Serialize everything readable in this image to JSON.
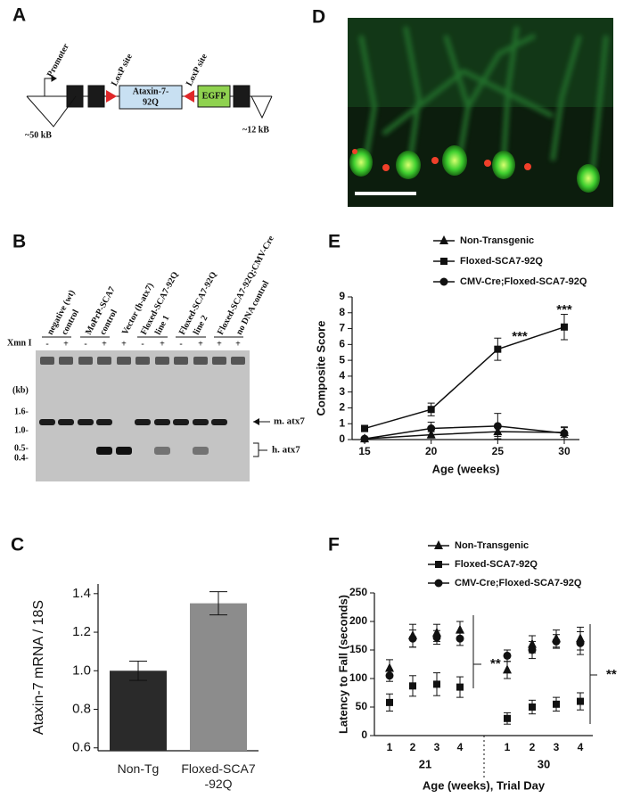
{
  "panel_labels": [
    "A",
    "B",
    "C",
    "D",
    "E",
    "F"
  ],
  "diagram": {
    "promoter": "Promoter",
    "loxp_left": "LoxP site",
    "gene": [
      "Ataxin-7-",
      "92Q"
    ],
    "loxp_right": "LoxP site",
    "reporter": "EGFP",
    "left_size": "~50 kB",
    "right_size": "~12 kB"
  },
  "gel": {
    "enzyme": "Xmn I",
    "lane_labels": [
      "negative (wt)",
      "control",
      "MoPrP-SCA7",
      "control",
      "Vector (h-atx7)",
      "Floxed-SCA7-92Q",
      "line 1",
      "Floxed-SCA7-92Q",
      "line 2",
      "Floxed-SCA7-92Q;CMV-Cre",
      "no DNA control"
    ],
    "lane_signs": [
      "-",
      "+",
      "-",
      "+",
      "+",
      "-",
      "+",
      "-",
      "+",
      "+",
      "+"
    ],
    "size_unit": "(kb)",
    "size_markers": [
      "1.6-",
      "1.0-",
      "0.5-",
      "0.4-"
    ],
    "band_labels": [
      "m. atx7",
      "h. atx7"
    ]
  },
  "chart_data": [
    {
      "type": "bar",
      "ylabel": "Ataxin-7 mRNA / 18S",
      "categories": [
        "Non-Tg",
        "Floxed-SCA7 -92Q"
      ],
      "values": [
        1.0,
        1.35
      ],
      "errors": [
        0.05,
        0.06
      ],
      "colors": [
        "#2a2a2a",
        "#8c8c8c"
      ],
      "ylim": [
        0.585,
        1.45
      ],
      "yticks": [
        0.6,
        0.8,
        {
          "value": 1,
          "label": "1.0"
        },
        1.2,
        1.4
      ]
    },
    {
      "type": "line",
      "xlabel": "Age (weeks)",
      "ylabel": "Composite Score",
      "x": [
        15,
        20,
        25,
        30
      ],
      "xlim": [
        14.06,
        31.14
      ],
      "xticks": [
        15,
        20,
        25,
        30
      ],
      "ylim": [
        0,
        9
      ],
      "yticks": [
        0,
        1,
        2,
        3,
        4,
        5,
        6,
        7,
        8,
        9
      ],
      "series": [
        {
          "name": "Non-Transgenic",
          "marker": "triangle",
          "color": "#111111",
          "values": [
            0.05,
            0.3,
            0.5,
            0.45
          ],
          "errors": [
            0.05,
            0.2,
            0.3,
            0.3
          ]
        },
        {
          "name": "Floxed-SCA7-92Q",
          "marker": "square",
          "color": "#111111",
          "values": [
            0.7,
            1.9,
            5.7,
            7.1
          ],
          "errors": [
            0.2,
            0.4,
            0.7,
            0.8
          ]
        },
        {
          "name": "CMV-Cre;Floxed-SCA7-92Q",
          "marker": "circle",
          "color": "#111111",
          "values": [
            0.05,
            0.7,
            0.85,
            0.4
          ],
          "errors": [
            0.05,
            0.4,
            0.8,
            0.4
          ]
        }
      ],
      "annotations": [
        "***",
        "***"
      ]
    },
    {
      "type": "scatter",
      "xlabel": "Age (weeks), Trial Day",
      "ylabel": "Latency to Fall (seconds)",
      "categories": [
        "1",
        "2",
        "3",
        "4",
        "1",
        "2",
        "3",
        "4"
      ],
      "groups": [
        "21",
        "30"
      ],
      "ylim": [
        0,
        250
      ],
      "yticks": [
        0,
        50,
        100,
        150,
        200,
        250
      ],
      "series": [
        {
          "name": "Non-Transgenic",
          "marker": "triangle",
          "color": "#111111",
          "values": [
            118,
            175,
            180,
            185,
            115,
            160,
            170,
            170
          ],
          "errors": [
            15,
            20,
            15,
            15,
            15,
            15,
            15,
            20
          ]
        },
        {
          "name": "Floxed-SCA7-92Q",
          "marker": "square",
          "color": "#111111",
          "values": [
            58,
            87,
            90,
            85,
            30,
            50,
            55,
            60
          ],
          "errors": [
            15,
            18,
            20,
            18,
            10,
            12,
            12,
            15
          ]
        },
        {
          "name": "CMV-Cre;Floxed-SCA7-92Q",
          "marker": "circle",
          "color": "#111111",
          "values": [
            105,
            170,
            172,
            170,
            140,
            150,
            165,
            162
          ],
          "errors": [
            10,
            15,
            12,
            12,
            10,
            15,
            12,
            20
          ]
        }
      ],
      "annotations": [
        "**",
        "**"
      ]
    }
  ]
}
